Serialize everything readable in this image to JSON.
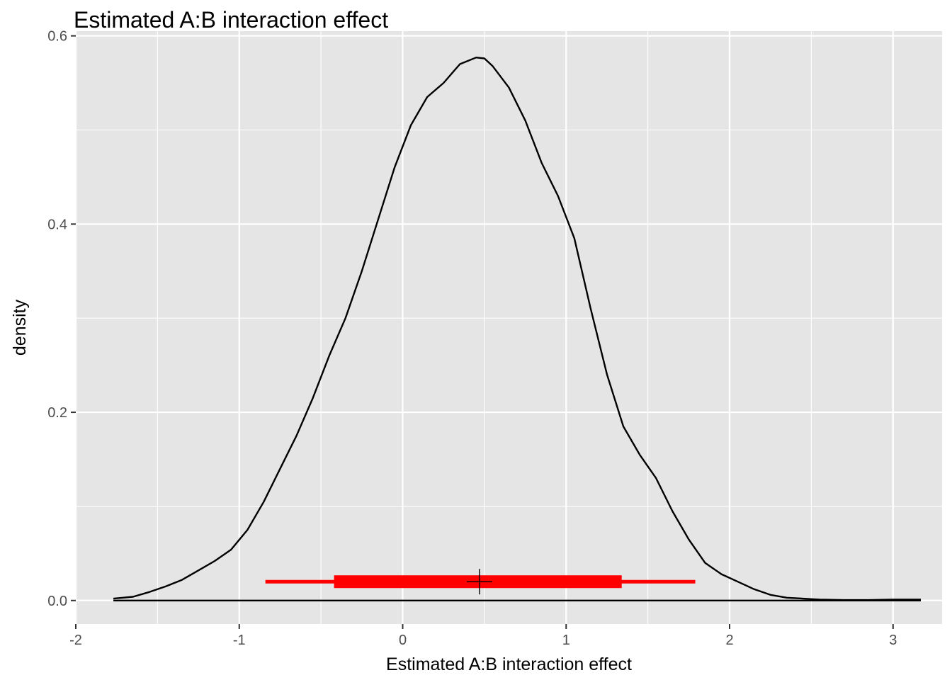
{
  "chart_data": {
    "type": "area",
    "title": "Estimated A:B interaction effect",
    "xlabel": "Estimated A:B interaction effect",
    "ylabel": "density",
    "xlim": [
      -2.0,
      3.3
    ],
    "ylim": [
      -0.025,
      0.605
    ],
    "x_ticks": [
      -2,
      -1,
      0,
      1,
      2,
      3
    ],
    "x_tick_labels": [
      "-2",
      "-1",
      "0",
      "1",
      "2",
      "3"
    ],
    "y_ticks": [
      0.0,
      0.2,
      0.4,
      0.6
    ],
    "y_tick_labels": [
      "0.0",
      "0.2",
      "0.4",
      "0.6"
    ],
    "grid": true,
    "series": [
      {
        "kind": "density",
        "x": [
          -1.77,
          -1.65,
          -1.55,
          -1.45,
          -1.35,
          -1.25,
          -1.15,
          -1.05,
          -0.95,
          -0.85,
          -0.75,
          -0.65,
          -0.55,
          -0.45,
          -0.35,
          -0.25,
          -0.15,
          -0.05,
          0.05,
          0.15,
          0.25,
          0.35,
          0.45,
          0.5,
          0.55,
          0.65,
          0.75,
          0.85,
          0.95,
          1.05,
          1.15,
          1.25,
          1.35,
          1.45,
          1.55,
          1.65,
          1.75,
          1.85,
          1.95,
          2.05,
          2.15,
          2.25,
          2.35,
          2.45,
          2.55,
          2.7,
          2.85,
          3.0,
          3.17
        ],
        "y": [
          0.002,
          0.004,
          0.009,
          0.015,
          0.022,
          0.032,
          0.042,
          0.054,
          0.075,
          0.105,
          0.14,
          0.175,
          0.215,
          0.26,
          0.3,
          0.35,
          0.405,
          0.46,
          0.505,
          0.535,
          0.55,
          0.57,
          0.577,
          0.576,
          0.568,
          0.545,
          0.51,
          0.465,
          0.43,
          0.385,
          0.31,
          0.24,
          0.185,
          0.155,
          0.13,
          0.095,
          0.065,
          0.04,
          0.028,
          0.02,
          0.012,
          0.006,
          0.003,
          0.002,
          0.001,
          0.0005,
          0.0005,
          0.001,
          0.001
        ],
        "color": "#000000"
      }
    ],
    "interval": {
      "point_estimate": 0.47,
      "inner": [
        -0.42,
        1.34
      ],
      "outer": [
        -0.84,
        1.79
      ],
      "y": 0.02,
      "color": "#ff0000"
    },
    "baseline": {
      "y": 0.0,
      "from": -1.77,
      "to": 3.17
    }
  }
}
